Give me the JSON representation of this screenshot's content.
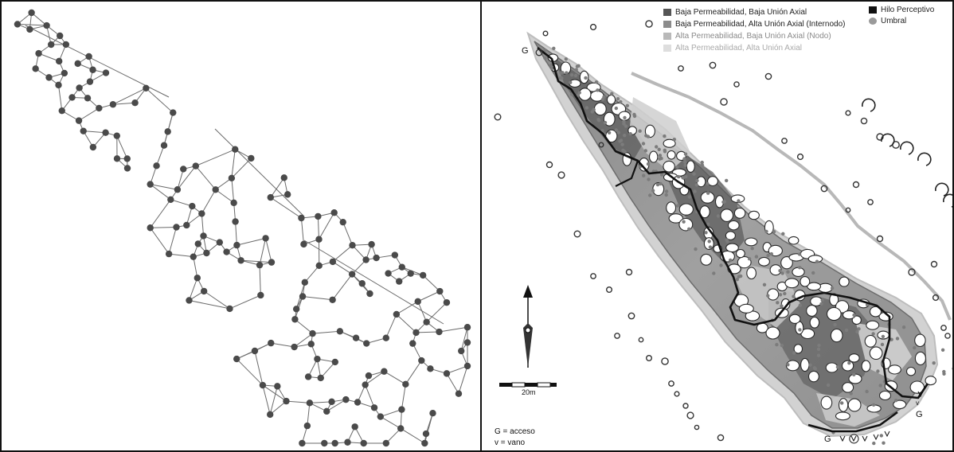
{
  "left_panel": {},
  "right_panel": {
    "legend": {
      "items": [
        {
          "label": "Baja Permeabilidad, Baja Unión Axial",
          "color": "#555555"
        },
        {
          "label": "Baja Permeabilidad, Alta Unión Axial (Internodo)",
          "color": "#8c8c8c"
        },
        {
          "label": "Alta Permeabilidad, Baja Unión Axial (Nodo)",
          "color": "#b9b9b9"
        },
        {
          "label": "Alta Permeabilidad, Alta Unión Axial",
          "color": "#dedede"
        }
      ],
      "right_items": [
        {
          "label": "Hilo Perceptivo",
          "color": "#111111"
        },
        {
          "label": "Umbral",
          "color": "#9a9a9a"
        }
      ]
    },
    "map_labels": {
      "access_a": "G",
      "access_b": "G",
      "access_c": "G",
      "vano": "v"
    },
    "scale_label": "20m",
    "key_notes": {
      "access": "G = acceso",
      "vano": "v = vano"
    }
  }
}
